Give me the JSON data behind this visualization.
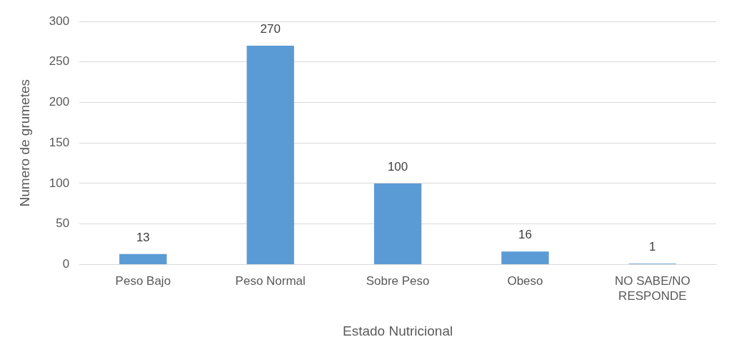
{
  "chart_data": {
    "type": "bar",
    "xlabel": "Estado Nutricional",
    "ylabel": "Numero de grumetes",
    "categories": [
      "Peso Bajo",
      "Peso Normal",
      "Sobre Peso",
      "Obeso",
      "NO SABE/NO RESPONDE"
    ],
    "values": [
      13,
      270,
      100,
      16,
      1
    ],
    "color": "#5b9bd5",
    "ylim": [
      0,
      300
    ],
    "yticks": [
      0,
      50,
      100,
      150,
      200,
      250,
      300
    ],
    "grid": "y",
    "data_labels": true
  }
}
